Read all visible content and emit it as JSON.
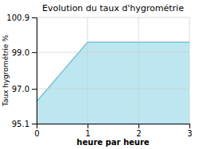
{
  "chart_data": {
    "type": "area",
    "title": "Evolution du taux d'hygrométrie",
    "x_label": "heure par heure",
    "y_label": "Taux hygrométrie %",
    "x": [
      0,
      1,
      3
    ],
    "values": [
      96.3,
      99.55,
      99.55
    ],
    "color": "#6cc8e0",
    "xlim": [
      0,
      3
    ],
    "xticks": [
      0,
      1,
      2,
      3
    ],
    "ylim": [
      95.1,
      100.9
    ],
    "yticks": [
      95.1,
      {
        "value": 97.0,
        "label": "97.0"
      },
      {
        "value": 99.0,
        "label": "99.0"
      },
      100.9
    ],
    "grid": true
  }
}
